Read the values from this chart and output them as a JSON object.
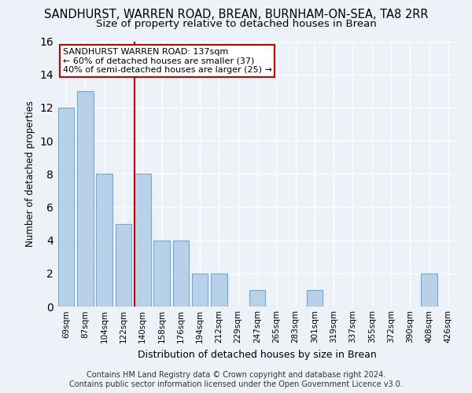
{
  "title": "SANDHURST, WARREN ROAD, BREAN, BURNHAM-ON-SEA, TA8 2RR",
  "subtitle": "Size of property relative to detached houses in Brean",
  "xlabel": "Distribution of detached houses by size in Brean",
  "ylabel": "Number of detached properties",
  "categories": [
    "69sqm",
    "87sqm",
    "104sqm",
    "122sqm",
    "140sqm",
    "158sqm",
    "176sqm",
    "194sqm",
    "212sqm",
    "229sqm",
    "247sqm",
    "265sqm",
    "283sqm",
    "301sqm",
    "319sqm",
    "337sqm",
    "355sqm",
    "372sqm",
    "390sqm",
    "408sqm",
    "426sqm"
  ],
  "values": [
    12,
    13,
    8,
    5,
    8,
    4,
    4,
    2,
    2,
    0,
    1,
    0,
    0,
    1,
    0,
    0,
    0,
    0,
    0,
    2,
    0
  ],
  "bar_color": "#b8d0e8",
  "bar_edge_color": "#6aacd6",
  "ylim": [
    0,
    16
  ],
  "yticks": [
    0,
    2,
    4,
    6,
    8,
    10,
    12,
    14,
    16
  ],
  "vline_x_index": 4,
  "vline_color": "#cc0000",
  "annotation_line1": "SANDHURST WARREN ROAD: 137sqm",
  "annotation_line2": "← 60% of detached houses are smaller (37)",
  "annotation_line3": "40% of semi-detached houses are larger (25) →",
  "footer1": "Contains HM Land Registry data © Crown copyright and database right 2024.",
  "footer2": "Contains public sector information licensed under the Open Government Licence v3.0.",
  "background_color": "#edf2f9",
  "grid_color": "#ffffff",
  "title_fontsize": 10.5,
  "subtitle_fontsize": 9.5,
  "ylabel_fontsize": 8.5,
  "xlabel_fontsize": 9,
  "tick_fontsize": 7.5,
  "annotation_fontsize": 8,
  "footer_fontsize": 7
}
